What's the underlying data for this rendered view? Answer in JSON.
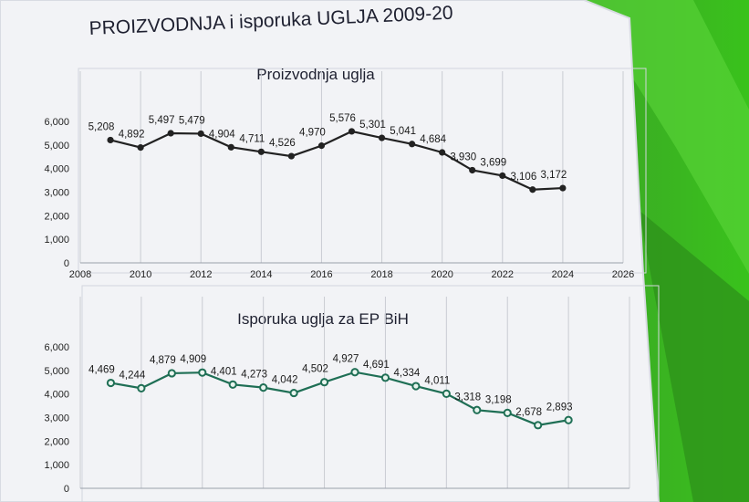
{
  "slide": {
    "title": "PROIZVODNJA i isporuka UGLJA 2009-20",
    "accent_color": "#2fb51b"
  },
  "chart_data": [
    {
      "type": "line",
      "title": "Proizvodnja uglja",
      "xlabel": "",
      "ylabel": "",
      "x_ticks": [
        "2008",
        "2010",
        "2012",
        "2014",
        "2016",
        "2018",
        "2020",
        "2022",
        "2024",
        "2026"
      ],
      "y_ticks": [
        "0",
        "1,000",
        "2,000",
        "3,000",
        "4,000",
        "5,000",
        "6,000"
      ],
      "ylim": [
        0,
        6000
      ],
      "xlim": [
        2008,
        2026
      ],
      "grid": "vertical",
      "color": "#222222",
      "x": [
        2009,
        2010,
        2011,
        2012,
        2013,
        2014,
        2015,
        2016,
        2017,
        2018,
        2019,
        2020,
        2021,
        2022,
        2023,
        2024
      ],
      "values": [
        5208,
        4892,
        5497,
        5479,
        4904,
        4711,
        4526,
        4970,
        5576,
        5301,
        5041,
        4684,
        3930,
        3699,
        3106,
        3172
      ],
      "labels": [
        "5,208",
        "4,892",
        "5,497",
        "5,479",
        "4,904",
        "4,711",
        "4,526",
        "4,970",
        "5,576",
        "5,301",
        "5,041",
        "4,684",
        "3,930",
        "3,699",
        "3,106",
        "3,172"
      ]
    },
    {
      "type": "line",
      "title": "Isporuka uglja za EP BiH",
      "xlabel": "",
      "ylabel": "",
      "y_ticks": [
        "0",
        "1,000",
        "2,000",
        "3,000",
        "4,000",
        "5,000",
        "6,000"
      ],
      "ylim": [
        0,
        6000
      ],
      "xlim": [
        2008,
        2026
      ],
      "grid": "vertical",
      "color": "#1f6f55",
      "x": [
        2009,
        2010,
        2011,
        2012,
        2013,
        2014,
        2015,
        2016,
        2017,
        2018,
        2019,
        2020,
        2021,
        2022,
        2023,
        2024
      ],
      "values": [
        4469,
        4244,
        4879,
        4909,
        4401,
        4273,
        4042,
        4502,
        4927,
        4691,
        4334,
        4011,
        3318,
        3198,
        2678,
        2893
      ],
      "labels": [
        "4,469",
        "4,244",
        "4,879",
        "4,909",
        "4,401",
        "4,273",
        "4,042",
        "4,502",
        "4,927",
        "4,691",
        "4,334",
        "4,011",
        "3,318",
        "3,198",
        "2,678",
        "2,893"
      ]
    }
  ]
}
